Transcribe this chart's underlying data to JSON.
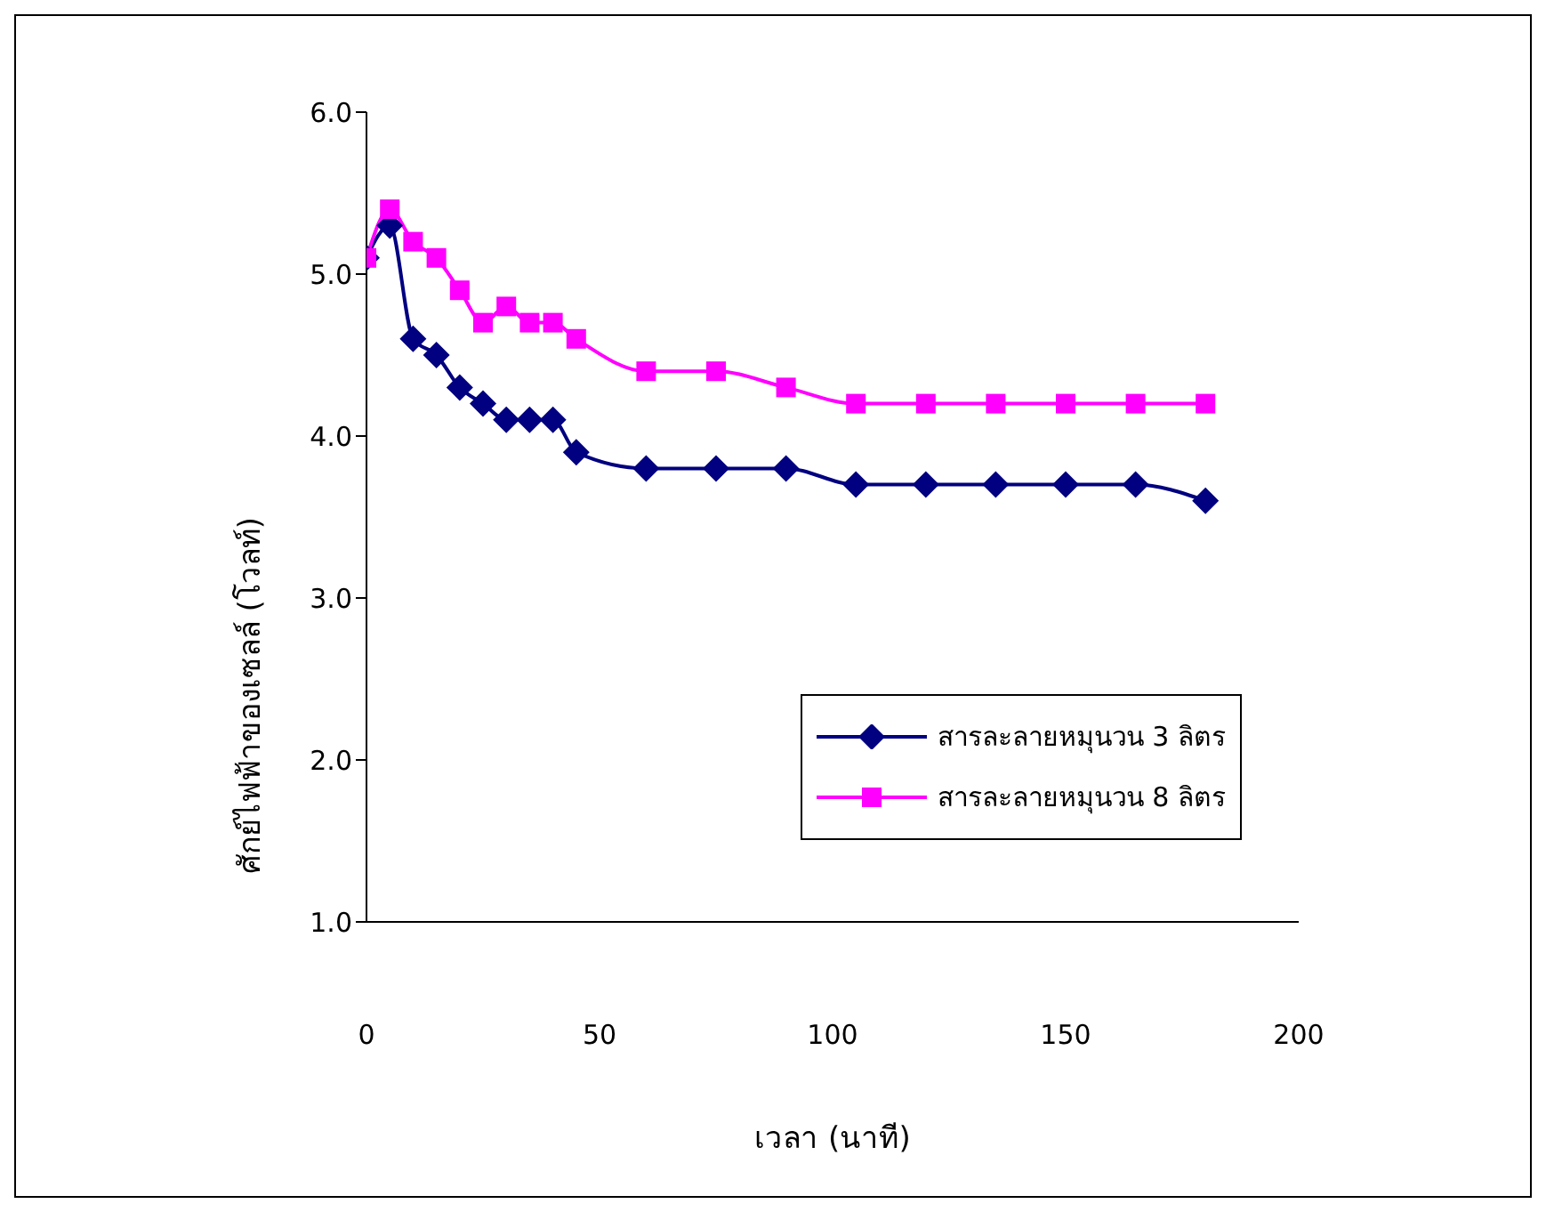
{
  "chart_data": {
    "type": "line",
    "xlabel": "เวลา (นาที)",
    "ylabel": "ศักย์ไฟฟ้าของเซลล์ (โวลท์)",
    "x": [
      0,
      5,
      10,
      15,
      20,
      25,
      30,
      35,
      40,
      45,
      60,
      75,
      90,
      105,
      120,
      135,
      150,
      165,
      180
    ],
    "series": [
      {
        "name": "สารละลายหมุนวน 3 ลิตร",
        "color": "#000080",
        "marker": "diamond",
        "values": [
          5.1,
          5.3,
          4.6,
          4.5,
          4.3,
          4.2,
          4.1,
          4.1,
          4.1,
          3.9,
          3.8,
          3.8,
          3.8,
          3.7,
          3.7,
          3.7,
          3.7,
          3.7,
          3.6
        ]
      },
      {
        "name": "สารละลายหมุนวน 8 ลิตร",
        "color": "#ff00ff",
        "marker": "square",
        "values": [
          5.1,
          5.4,
          5.2,
          5.1,
          4.9,
          4.7,
          4.8,
          4.7,
          4.7,
          4.6,
          4.4,
          4.4,
          4.3,
          4.2,
          4.2,
          4.2,
          4.2,
          4.2,
          4.2
        ]
      }
    ],
    "xlim": [
      0,
      200
    ],
    "xticks": [
      0,
      50,
      100,
      150,
      200
    ],
    "ylim": [
      1,
      6
    ],
    "yticks": [
      {
        "value": 1,
        "label": "1.0"
      },
      {
        "value": 2,
        "label": "2.0"
      },
      {
        "value": 3,
        "label": "3.0"
      },
      {
        "value": 4,
        "label": "4.0"
      },
      {
        "value": 5,
        "label": "5.0"
      },
      {
        "value": 6,
        "label": "6.0"
      }
    ],
    "grid": false,
    "legend": "bottom right",
    "line_style": "solid"
  }
}
